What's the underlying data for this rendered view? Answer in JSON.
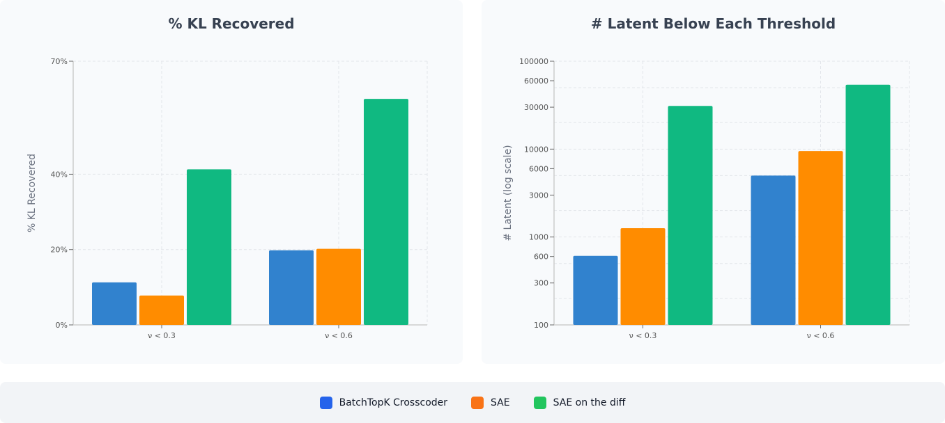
{
  "chart_data": [
    {
      "type": "bar",
      "title": "% KL Recovered",
      "ylabel": "% KL Recovered",
      "xlabel": "",
      "categories": [
        "ν < 0.3",
        "ν < 0.6"
      ],
      "ylim": [
        0,
        70
      ],
      "yscale": "linear",
      "yticks": [
        0,
        20,
        40,
        70
      ],
      "ytick_labels": [
        "0%",
        "20%",
        "40%",
        "70%"
      ],
      "grid": true,
      "series": [
        {
          "name": "BatchTopK Crosscoder",
          "color": "#3182ce",
          "values": [
            11.3,
            19.8
          ]
        },
        {
          "name": "SAE",
          "color": "#ff8c00",
          "values": [
            7.8,
            20.2
          ]
        },
        {
          "name": "SAE on the diff",
          "color": "#10b981",
          "values": [
            41.3,
            60
          ]
        }
      ]
    },
    {
      "type": "bar",
      "title": "# Latent Below Each Threshold",
      "ylabel": "# Latent (log scale)",
      "xlabel": "",
      "categories": [
        "ν < 0.3",
        "ν < 0.6"
      ],
      "ylim": [
        100,
        100000
      ],
      "yscale": "log",
      "yticks": [
        100,
        300,
        600,
        1000,
        3000,
        6000,
        10000,
        30000,
        60000,
        100000
      ],
      "ytick_labels": [
        "100",
        "300",
        "600",
        "1000",
        "3000",
        "6000",
        "10000",
        "30000",
        "60000",
        "100000"
      ],
      "grid": true,
      "series": [
        {
          "name": "BatchTopK Crosscoder",
          "color": "#3182ce",
          "values": [
            610,
            5000
          ]
        },
        {
          "name": "SAE",
          "color": "#ff8c00",
          "values": [
            1260,
            9500
          ]
        },
        {
          "name": "SAE on the diff",
          "color": "#10b981",
          "values": [
            31000,
            54000
          ]
        }
      ]
    }
  ],
  "legend": {
    "placement": "bottom",
    "items": [
      {
        "label": "BatchTopK Crosscoder",
        "color": "#2563eb"
      },
      {
        "label": "SAE",
        "color": "#f97316"
      },
      {
        "label": "SAE on the diff",
        "color": "#22c55e"
      }
    ]
  }
}
